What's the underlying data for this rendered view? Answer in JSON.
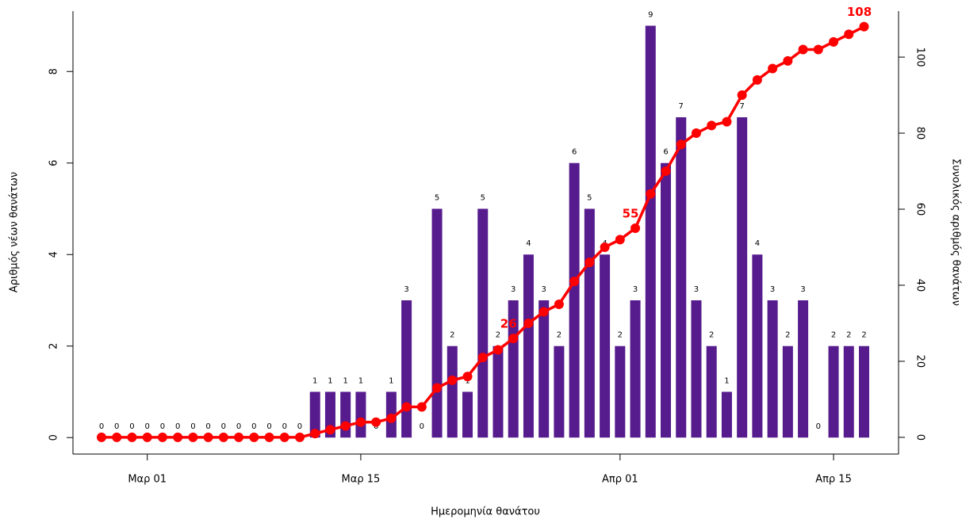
{
  "chart_data": {
    "type": "bar-line",
    "x_label": "Ημερομηνία θανάτου",
    "y_label": "Αριθμός νέων θανάτων",
    "y2_label": "Συνολικός αριθμός θανάτων",
    "categories": [
      null,
      null,
      null,
      "Μαρ 01",
      null,
      null,
      null,
      null,
      null,
      null,
      null,
      null,
      null,
      null,
      null,
      null,
      null,
      "Μαρ 15",
      null,
      null,
      null,
      null,
      null,
      null,
      null,
      null,
      null,
      null,
      null,
      null,
      null,
      null,
      null,
      null,
      "Απρ 01",
      null,
      null,
      null,
      null,
      null,
      null,
      null,
      null,
      null,
      null,
      null,
      null,
      null,
      "Απρ 15",
      null,
      null
    ],
    "series": [
      {
        "type": "bar",
        "color": "#561b8d",
        "values": [
          0,
          0,
          0,
          0,
          0,
          0,
          0,
          0,
          0,
          0,
          0,
          0,
          0,
          0,
          1,
          1,
          1,
          1,
          0,
          1,
          3,
          0,
          5,
          2,
          1,
          5,
          2,
          3,
          4,
          3,
          2,
          6,
          5,
          4,
          2,
          3,
          9,
          6,
          7,
          3,
          2,
          1,
          7,
          4,
          3,
          2,
          3,
          0,
          2,
          2,
          2
        ]
      },
      {
        "type": "line",
        "axis": "y2",
        "color": "#ff0000",
        "values": [
          0,
          0,
          0,
          0,
          0,
          0,
          0,
          0,
          0,
          0,
          0,
          0,
          0,
          0,
          1,
          2,
          3,
          4,
          4,
          5,
          8,
          8,
          13,
          15,
          16,
          21,
          23,
          26,
          30,
          33,
          35,
          41,
          46,
          50,
          52,
          55,
          64,
          70,
          77,
          80,
          82,
          83,
          90,
          94,
          97,
          99,
          102,
          102,
          104,
          106,
          108
        ],
        "value_labels": [
          null,
          null,
          null,
          null,
          null,
          null,
          null,
          null,
          null,
          null,
          null,
          null,
          null,
          null,
          null,
          null,
          null,
          null,
          null,
          null,
          null,
          null,
          null,
          null,
          null,
          null,
          null,
          "26",
          null,
          null,
          null,
          null,
          null,
          null,
          null,
          "55",
          null,
          null,
          null,
          null,
          null,
          null,
          null,
          null,
          null,
          null,
          null,
          null,
          null,
          null,
          "108"
        ]
      }
    ],
    "ylim": [
      -0.36,
      9.32
    ],
    "yticks": [
      0,
      2,
      4,
      6,
      8
    ],
    "y2lim": [
      -4.4,
      112.1
    ],
    "y2ticks": [
      0,
      20,
      40,
      60,
      80,
      100
    ]
  }
}
